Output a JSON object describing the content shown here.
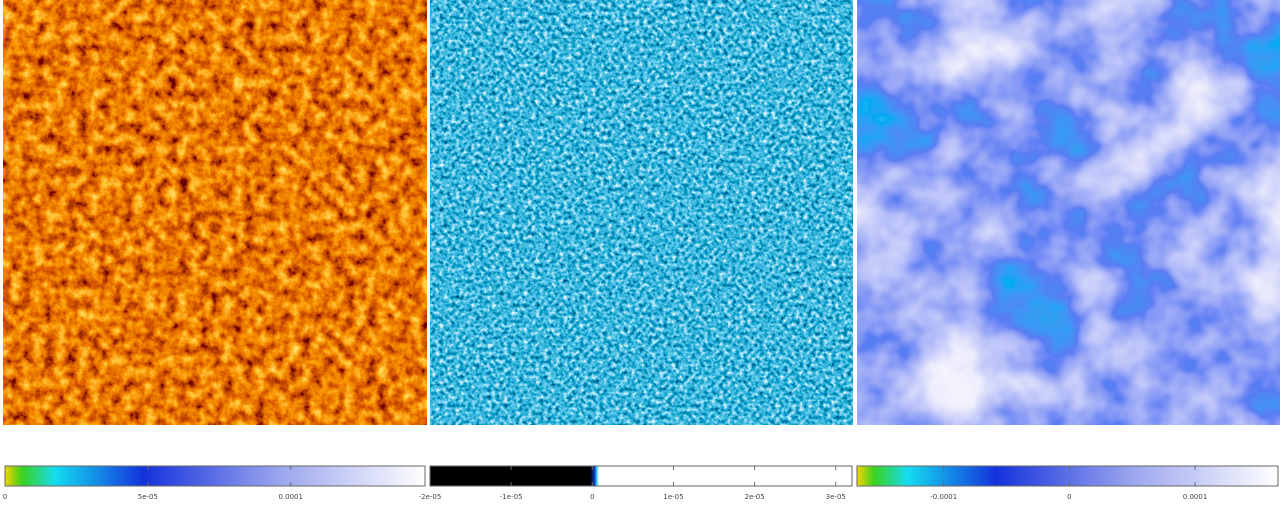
{
  "colorbars": [
    {
      "lim": [
        0,
        0.000147
      ],
      "ticks": [
        0,
        {
          "value": 5e-05,
          "label": "5e-05"
        },
        {
          "value": 0.0001,
          "label": "0.0001"
        }
      ]
    },
    {
      "lim": [
        -2e-05,
        3.2e-05
      ],
      "ticks": [
        {
          "value": -2e-05,
          "label": "-2e-05"
        },
        {
          "value": -1e-05,
          "label": "-1e-05"
        },
        0,
        {
          "value": 1e-05,
          "label": "1e-05"
        },
        {
          "value": 2e-05,
          "label": "2e-05"
        },
        {
          "value": 3e-05,
          "label": "3e-05"
        }
      ]
    },
    {
      "lim": [
        -0.000169,
        0.000166
      ],
      "ticks": [
        {
          "value": -0.0001,
          "label": "-0.0001"
        },
        0,
        {
          "value": 0.0001,
          "label": "0.0001"
        }
      ]
    }
  ]
}
